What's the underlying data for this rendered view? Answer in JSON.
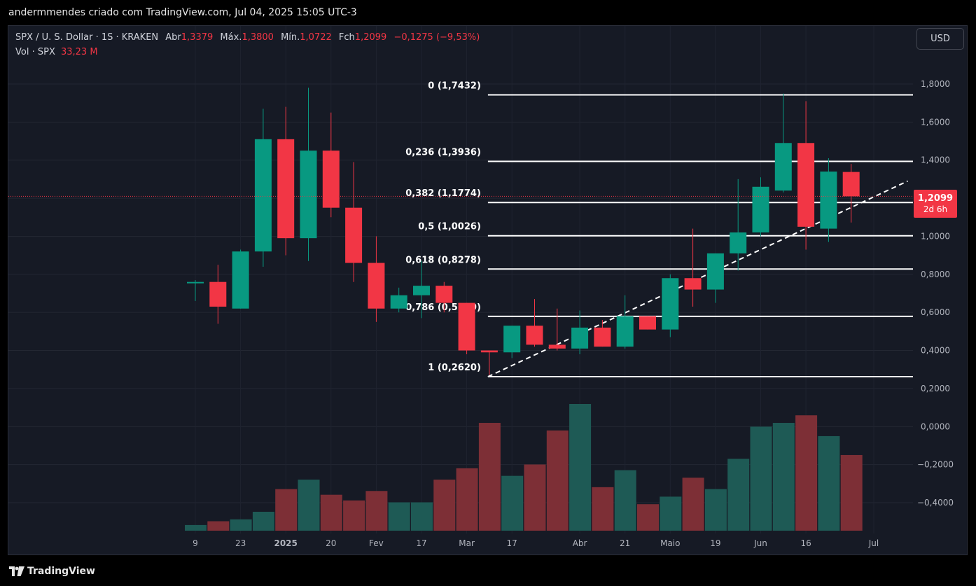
{
  "snapshot_title": "andermmendes criado com TradingView.com, Jul 04, 2025 15:05 UTC-3",
  "legend": {
    "symbol": "SPX / U. S. Dollar · 1S · KRAKEN",
    "open_label": "Abr",
    "open": "1,3379",
    "high_label": "Máx.",
    "high": "1,3800",
    "low_label": "Mín.",
    "low": "1,0722",
    "close_label": "Fch",
    "close": "1,2099",
    "change": "−0,1275 (−9,53%)",
    "volume_label": "Vol · SPX",
    "volume": "33,23 M"
  },
  "currency_button": "USD",
  "price_badge": {
    "price": "1,2099",
    "countdown": "2d 6h"
  },
  "footer_logo": "TradingView",
  "colors": {
    "up": "#089981",
    "down": "#f23645",
    "up_volume": "#1e5a55",
    "down_volume": "#7d2f36",
    "background": "#161a25"
  },
  "chart_data": {
    "type": "candlestick",
    "interval": "1W",
    "y_axis_ticks": [
      "1,8000",
      "1,6000",
      "1,4000",
      "1,2000",
      "1,0000",
      "0,8000",
      "0,6000",
      "0,4000",
      "0,2000",
      "0,0000",
      "−0,2000",
      "−0,4000"
    ],
    "y_axis_tick_values": [
      1.8,
      1.6,
      1.4,
      1.2,
      1.0,
      0.8,
      0.6,
      0.4,
      0.2,
      0.0,
      -0.2,
      -0.4
    ],
    "ylim": [
      -0.55,
      1.92
    ],
    "x_axis_ticks": [
      {
        "label": "9",
        "bar": 0
      },
      {
        "label": "23",
        "bar": 2
      },
      {
        "label": "2025",
        "bar": 4,
        "bold": true
      },
      {
        "label": "20",
        "bar": 6
      },
      {
        "label": "Fev",
        "bar": 8
      },
      {
        "label": "17",
        "bar": 10
      },
      {
        "label": "Mar",
        "bar": 12
      },
      {
        "label": "17",
        "bar": 14
      },
      {
        "label": "Abr",
        "bar": 17
      },
      {
        "label": "21",
        "bar": 19
      },
      {
        "label": "Maio",
        "bar": 21
      },
      {
        "label": "19",
        "bar": 23
      },
      {
        "label": "Jun",
        "bar": 25
      },
      {
        "label": "16",
        "bar": 27
      },
      {
        "label": "Jul",
        "bar": 30
      }
    ],
    "candles": [
      {
        "o": 0.76,
        "h": 0.77,
        "l": 0.66,
        "c": 0.76,
        "v": 3
      },
      {
        "o": 0.76,
        "h": 0.85,
        "l": 0.54,
        "c": 0.63,
        "v": 5
      },
      {
        "o": 0.62,
        "h": 0.93,
        "l": 0.62,
        "c": 0.92,
        "v": 6
      },
      {
        "o": 0.92,
        "h": 1.67,
        "l": 0.84,
        "c": 1.51,
        "v": 10
      },
      {
        "o": 1.51,
        "h": 1.68,
        "l": 0.9,
        "c": 0.99,
        "v": 22
      },
      {
        "o": 0.99,
        "h": 1.78,
        "l": 0.87,
        "c": 1.45,
        "v": 27
      },
      {
        "o": 1.45,
        "h": 1.65,
        "l": 1.1,
        "c": 1.15,
        "v": 19
      },
      {
        "o": 1.15,
        "h": 1.39,
        "l": 0.76,
        "c": 0.86,
        "v": 16
      },
      {
        "o": 0.86,
        "h": 1.0,
        "l": 0.55,
        "c": 0.62,
        "v": 21
      },
      {
        "o": 0.62,
        "h": 0.73,
        "l": 0.6,
        "c": 0.69,
        "v": 15
      },
      {
        "o": 0.69,
        "h": 0.87,
        "l": 0.57,
        "c": 0.74,
        "v": 15
      },
      {
        "o": 0.74,
        "h": 0.76,
        "l": 0.6,
        "c": 0.65,
        "v": 27
      },
      {
        "o": 0.65,
        "h": 0.65,
        "l": 0.38,
        "c": 0.4,
        "v": 33
      },
      {
        "o": 0.4,
        "h": 0.4,
        "l": 0.27,
        "c": 0.39,
        "v": 57
      },
      {
        "o": 0.39,
        "h": 0.53,
        "l": 0.36,
        "c": 0.53,
        "v": 29
      },
      {
        "o": 0.53,
        "h": 0.67,
        "l": 0.42,
        "c": 0.43,
        "v": 35
      },
      {
        "o": 0.43,
        "h": 0.62,
        "l": 0.4,
        "c": 0.41,
        "v": 53
      },
      {
        "o": 0.41,
        "h": 0.61,
        "l": 0.38,
        "c": 0.52,
        "v": 67
      },
      {
        "o": 0.52,
        "h": 0.56,
        "l": 0.42,
        "c": 0.42,
        "v": 23
      },
      {
        "o": 0.42,
        "h": 0.69,
        "l": 0.41,
        "c": 0.58,
        "v": 32
      },
      {
        "o": 0.58,
        "h": 0.58,
        "l": 0.51,
        "c": 0.51,
        "v": 14
      },
      {
        "o": 0.51,
        "h": 0.8,
        "l": 0.47,
        "c": 0.78,
        "v": 18
      },
      {
        "o": 0.78,
        "h": 1.04,
        "l": 0.63,
        "c": 0.72,
        "v": 28
      },
      {
        "o": 0.72,
        "h": 0.91,
        "l": 0.65,
        "c": 0.91,
        "v": 22
      },
      {
        "o": 0.91,
        "h": 1.3,
        "l": 0.82,
        "c": 1.02,
        "v": 38
      },
      {
        "o": 1.02,
        "h": 1.31,
        "l": 1.0,
        "c": 1.26,
        "v": 55
      },
      {
        "o": 1.24,
        "h": 1.75,
        "l": 1.23,
        "c": 1.49,
        "v": 57
      },
      {
        "o": 1.49,
        "h": 1.71,
        "l": 0.93,
        "c": 1.05,
        "v": 61
      },
      {
        "o": 1.04,
        "h": 1.41,
        "l": 0.97,
        "c": 1.34,
        "v": 50
      },
      {
        "o": 1.3379,
        "h": 1.38,
        "l": 1.0722,
        "c": 1.2099,
        "v": 40
      }
    ],
    "fibonacci": [
      {
        "label": "0 (1,7432)",
        "value": 1.7432
      },
      {
        "label": "0,236 (1,3936)",
        "value": 1.3936
      },
      {
        "label": "0,382 (1,1774)",
        "value": 1.1774
      },
      {
        "label": "0,5 (1,0026)",
        "value": 1.0026
      },
      {
        "label": "0,618 (0,8278)",
        "value": 0.8278
      },
      {
        "label": "0,786 (0,5790)",
        "value": 0.579
      },
      {
        "label": "1 (0,2620)",
        "value": 0.262
      }
    ],
    "fib_start_bar": 13,
    "trendline": {
      "from": {
        "bar": 13,
        "price": 0.262
      },
      "to": {
        "bar": 31.5,
        "price": 1.29
      }
    },
    "last_price": 1.2099
  }
}
